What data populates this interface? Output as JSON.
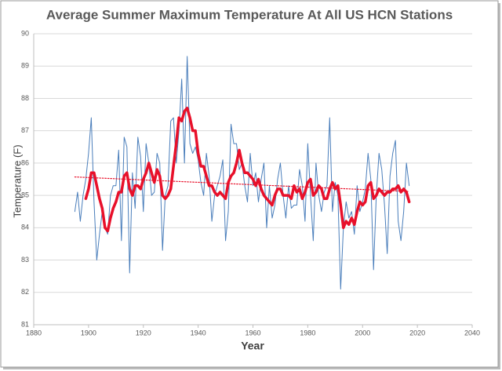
{
  "chart_data": {
    "type": "line",
    "title": "Average Summer Maximum Temperature At All US HCN Stations",
    "xlabel": "Year",
    "ylabel": "Temperature (F)",
    "xlim": [
      1880,
      2040
    ],
    "xticks": [
      1880,
      1900,
      1920,
      1940,
      1960,
      1980,
      2000,
      2020,
      2040
    ],
    "ylim": [
      81,
      90
    ],
    "yticks": [
      81,
      82,
      83,
      84,
      85,
      86,
      87,
      88,
      89,
      90
    ],
    "grid": true,
    "x": [
      1895,
      1896,
      1897,
      1898,
      1899,
      1900,
      1901,
      1902,
      1903,
      1904,
      1905,
      1906,
      1907,
      1908,
      1909,
      1910,
      1911,
      1912,
      1913,
      1914,
      1915,
      1916,
      1917,
      1918,
      1919,
      1920,
      1921,
      1922,
      1923,
      1924,
      1925,
      1926,
      1927,
      1928,
      1929,
      1930,
      1931,
      1932,
      1933,
      1934,
      1935,
      1936,
      1937,
      1938,
      1939,
      1940,
      1941,
      1942,
      1943,
      1944,
      1945,
      1946,
      1947,
      1948,
      1949,
      1950,
      1951,
      1952,
      1953,
      1954,
      1955,
      1956,
      1957,
      1958,
      1959,
      1960,
      1961,
      1962,
      1963,
      1964,
      1965,
      1966,
      1967,
      1968,
      1969,
      1970,
      1971,
      1972,
      1973,
      1974,
      1975,
      1976,
      1977,
      1978,
      1979,
      1980,
      1981,
      1982,
      1983,
      1984,
      1985,
      1986,
      1987,
      1988,
      1989,
      1990,
      1991,
      1992,
      1993,
      1994,
      1995,
      1996,
      1997,
      1998,
      1999,
      2000,
      2001,
      2002,
      2003,
      2004,
      2005,
      2006,
      2007,
      2008,
      2009,
      2010,
      2011,
      2012,
      2013,
      2014,
      2015,
      2016,
      2017
    ],
    "series": [
      {
        "color": "#4a7ebb",
        "width": 1,
        "dash": "none",
        "values": [
          84.5,
          85.1,
          84.2,
          85.0,
          85.5,
          86.3,
          87.4,
          84.8,
          83.0,
          83.8,
          84.5,
          84.0,
          83.8,
          85.0,
          85.3,
          85.3,
          86.4,
          83.6,
          86.8,
          86.5,
          82.6,
          85.7,
          84.6,
          86.8,
          86.2,
          84.5,
          86.6,
          86.0,
          85.0,
          85.1,
          86.3,
          86.0,
          83.3,
          85.0,
          85.3,
          87.3,
          87.4,
          86.0,
          87.0,
          88.6,
          86.0,
          89.3,
          86.6,
          86.3,
          86.5,
          86.1,
          85.4,
          85.0,
          86.3,
          85.6,
          84.2,
          85.0,
          85.3,
          85.6,
          86.1,
          83.6,
          84.5,
          87.2,
          86.6,
          86.6,
          85.8,
          86.0,
          85.3,
          84.8,
          86.3,
          85.3,
          85.7,
          84.8,
          85.5,
          86.0,
          84.0,
          85.3,
          84.3,
          84.7,
          85.5,
          86.0,
          85.0,
          84.3,
          85.3,
          84.6,
          84.7,
          84.7,
          85.8,
          85.3,
          84.2,
          86.6,
          85.0,
          83.6,
          86.0,
          85.0,
          84.5,
          85.1,
          85.3,
          87.4,
          84.5,
          85.4,
          85.0,
          82.1,
          84.0,
          84.8,
          84.3,
          84.5,
          83.8,
          85.3,
          84.5,
          84.8,
          85.2,
          86.3,
          85.5,
          82.7,
          85.0,
          86.3,
          85.8,
          84.7,
          83.2,
          85.6,
          86.3,
          86.7,
          84.2,
          83.6,
          84.5,
          86.0,
          85.3
        ]
      },
      {
        "color": "#e8102a",
        "width": 3.5,
        "dash": "none",
        "values": [
          null,
          null,
          null,
          null,
          84.9,
          85.2,
          85.7,
          85.7,
          85.3,
          84.9,
          84.6,
          84.0,
          83.9,
          84.3,
          84.6,
          84.8,
          85.1,
          85.1,
          85.6,
          85.7,
          85.2,
          85.0,
          85.3,
          85.3,
          85.2,
          85.5,
          85.7,
          86.0,
          85.7,
          85.4,
          85.8,
          85.6,
          85.0,
          84.9,
          85.0,
          85.2,
          85.9,
          86.6,
          87.4,
          87.3,
          87.6,
          87.7,
          87.4,
          87.0,
          87.0,
          86.3,
          85.9,
          85.9,
          85.6,
          85.3,
          85.3,
          85.1,
          85.0,
          85.1,
          85.0,
          84.9,
          85.4,
          85.6,
          85.7,
          86.0,
          86.4,
          86.0,
          85.7,
          85.7,
          85.6,
          85.5,
          85.3,
          85.5,
          85.2,
          85.0,
          84.9,
          84.8,
          84.7,
          85.0,
          85.2,
          85.2,
          85.0,
          85.0,
          85.0,
          84.9,
          85.3,
          85.1,
          85.2,
          84.9,
          85.1,
          85.4,
          85.5,
          85.0,
          85.1,
          85.3,
          85.2,
          84.9,
          84.9,
          85.2,
          85.4,
          85.2,
          85.3,
          84.7,
          84.0,
          84.2,
          84.1,
          84.3,
          84.1,
          84.5,
          84.8,
          84.7,
          84.8,
          85.3,
          85.4,
          84.9,
          85.0,
          85.2,
          85.1,
          85.0,
          85.1,
          85.1,
          85.2,
          85.2,
          85.3,
          85.1,
          85.2,
          85.1,
          84.8
        ]
      },
      {
        "color": "#e8102a",
        "width": 1.2,
        "dash": "1.5 2",
        "x": [
          1895,
          2017
        ],
        "values": [
          85.57,
          85.12
        ]
      }
    ]
  }
}
